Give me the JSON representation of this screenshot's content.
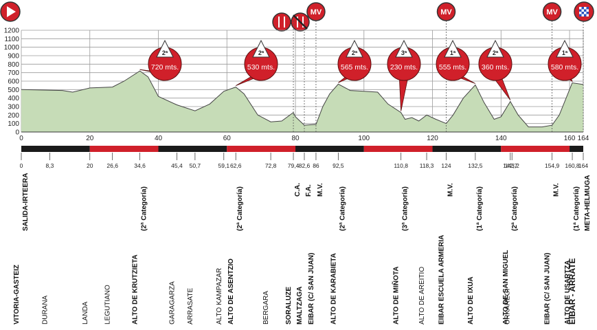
{
  "chart_data": {
    "type": "area",
    "color": "#c6dcb7",
    "grid": true,
    "x": [
      0,
      12,
      15,
      20,
      26.6,
      30,
      34.6,
      37,
      40,
      45.4,
      50.7,
      55,
      59.1,
      62.6,
      65,
      69,
      72.8,
      76,
      79.4,
      80,
      82.6,
      86,
      88,
      90,
      92.5,
      96,
      100,
      104,
      107,
      110.8,
      112,
      114,
      116,
      118.3,
      121,
      124,
      126,
      129,
      132.5,
      135,
      138,
      140,
      142.7,
      145,
      148,
      152,
      154.9,
      157,
      160.8,
      164
    ],
    "values": [
      500,
      490,
      470,
      520,
      530,
      600,
      720,
      650,
      420,
      320,
      250,
      330,
      480,
      530,
      450,
      200,
      120,
      130,
      230,
      180,
      80,
      90,
      300,
      450,
      565,
      490,
      480,
      470,
      330,
      230,
      150,
      170,
      130,
      200,
      150,
      100,
      200,
      400,
      555,
      350,
      150,
      180,
      360,
      200,
      60,
      60,
      80,
      200,
      580,
      560
    ],
    "xlim": [
      0,
      164
    ],
    "xticks": [
      0,
      20,
      40,
      60,
      80,
      100,
      120,
      140,
      160,
      164
    ],
    "ylim": [
      0,
      1200
    ],
    "yticks": [
      0,
      100,
      200,
      300,
      400,
      500,
      600,
      700,
      800,
      900,
      1000,
      1100,
      1200
    ],
    "climbs": [
      {
        "km": 34.6,
        "altitude": 720,
        "label": "720 mts.",
        "category": "2ª"
      },
      {
        "km": 62.6,
        "altitude": 530,
        "label": "530 mts.",
        "category": "2ª"
      },
      {
        "km": 92.5,
        "altitude": 565,
        "label": "565 mts.",
        "category": "2ª"
      },
      {
        "km": 110.8,
        "altitude": 230,
        "label": "230 mts.",
        "category": "3ª"
      },
      {
        "km": 132.5,
        "altitude": 555,
        "label": "555 mts.",
        "category": "1ª"
      },
      {
        "km": 142.7,
        "altitude": 360,
        "label": "360 mts.",
        "category": "2ª"
      },
      {
        "km": 160.8,
        "altitude": 580,
        "label": "580 mts.",
        "category": "1ª"
      }
    ],
    "markers": [
      {
        "km": 86,
        "label": "MV"
      },
      {
        "km": 124,
        "label": "MV"
      },
      {
        "km": 154.9,
        "label": "MV"
      }
    ],
    "route": [
      {
        "km": 0,
        "km_label": "0",
        "name": "VITORIA-GASTEIZ",
        "note": "SALIDA-IRTEERA",
        "bold": true
      },
      {
        "km": 8.3,
        "km_label": "8,3",
        "name": "DURANA",
        "bold": false
      },
      {
        "km": 20,
        "km_label": "20",
        "name": "LANDA",
        "bold": false
      },
      {
        "km": 26.6,
        "km_label": "26,6",
        "name": "LEGUTIANO",
        "bold": false
      },
      {
        "km": 34.6,
        "km_label": "34,6",
        "name": "ALTO DE KRUTZIETA",
        "note": "(2ª Categoría)",
        "bold": true
      },
      {
        "km": 45.4,
        "km_label": "45,4",
        "name": "GARAGARZA",
        "bold": false
      },
      {
        "km": 50.7,
        "km_label": "50,7",
        "name": "ARRASATE",
        "bold": false
      },
      {
        "km": 59.1,
        "km_label": "59,1",
        "name": "ALTO KAMPAZAR",
        "bold": false
      },
      {
        "km": 62.6,
        "km_label": "62,6",
        "name": "ALTO DE ASENTZIO",
        "note": "(2ª Categoría)",
        "bold": true
      },
      {
        "km": 72.8,
        "km_label": "72,8",
        "name": "BERGARA",
        "bold": false
      },
      {
        "km": 79.4,
        "km_label": "79,4",
        "name": "SORALUZE",
        "note": "C.A.",
        "bold": true
      },
      {
        "km": 82.6,
        "km_label": "82,6",
        "name": "MALTZAGA",
        "note": "F.A.",
        "bold": true
      },
      {
        "km": 86,
        "km_label": "86",
        "name": "EIBAR (C/ SAN JUAN)",
        "note": "M.V.",
        "bold": true
      },
      {
        "km": 92.5,
        "km_label": "92,5",
        "name": "ALTO DE KARABIETA",
        "note": "(2ª Categoría)",
        "bold": true
      },
      {
        "km": 110.8,
        "km_label": "110,8",
        "name": "ALTO DE MIÑOTA",
        "note": "(3ª Categoría)",
        "bold": true
      },
      {
        "km": 118.3,
        "km_label": "118,3",
        "name": "ALTO DE AREITIO",
        "bold": false
      },
      {
        "km": 124,
        "km_label": "124",
        "name": "EIBAR ESCUELA ARMERIA",
        "note": "M.V.",
        "bold": true
      },
      {
        "km": 132.5,
        "km_label": "132,5",
        "name": "ALTO DE IXUA",
        "note": "(1ª Categoría)",
        "bold": true
      },
      {
        "km": 142.7,
        "km_label": "142,7",
        "name": "ALTO DE SAN MIGUEL",
        "note": "(2ª Categoría)",
        "bold": true
      },
      {
        "km": 143.2,
        "km_label": "143,2",
        "name": "URKAREGI",
        "bold": false
      },
      {
        "km": 154.9,
        "km_label": "154,9",
        "name": "EIBAR (C/ SAN JUAN)",
        "note": "M.V.",
        "bold": true
      },
      {
        "km": 160.8,
        "km_label": "160,8",
        "name": "ALTO DE USARTZA",
        "note": "(1ª Categoría)",
        "bold": true
      },
      {
        "km": 164,
        "km_label": "164",
        "name": "EIBAR - ARRATE",
        "note": "META-HELMUGA",
        "bold": true
      }
    ]
  }
}
